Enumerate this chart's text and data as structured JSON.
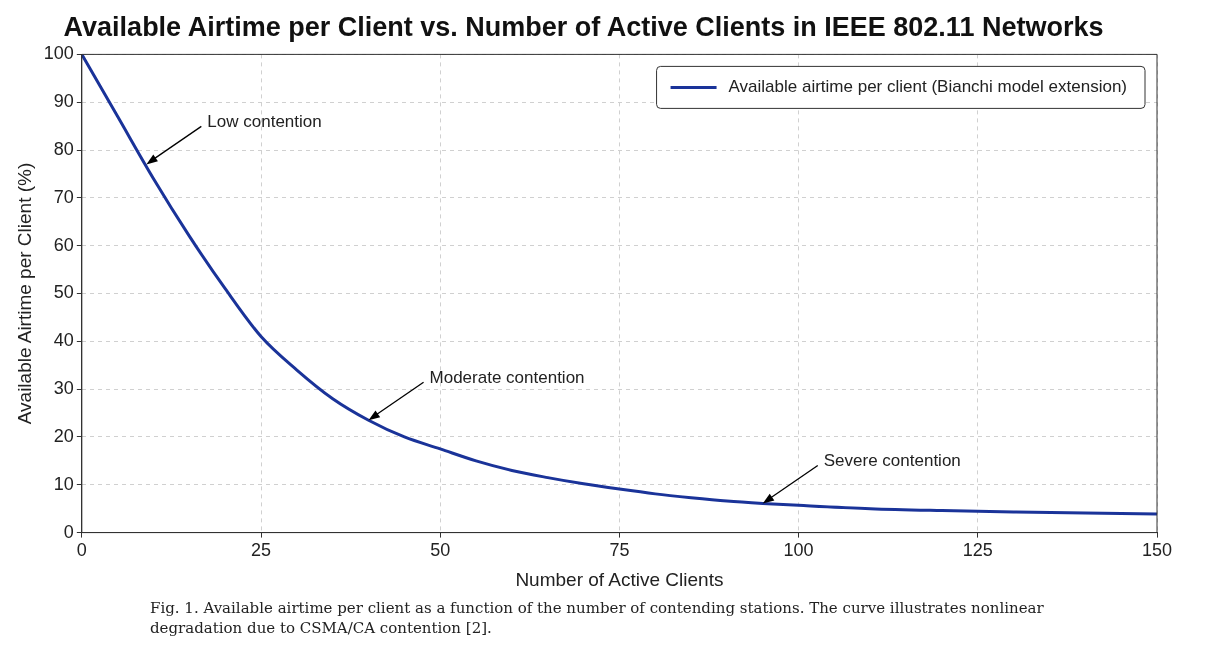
{
  "chart_data": {
    "type": "line",
    "title": "Available Airtime per Client vs. Number of Active Clients in IEEE 802.11 Networks",
    "xlabel": "Number of Active Clients",
    "ylabel": "Available Airtime per Client (%)",
    "xlim": [
      0,
      150
    ],
    "xticks": [
      0,
      25,
      50,
      75,
      100,
      125,
      150
    ],
    "ylim": [
      0,
      100
    ],
    "yticks": [
      0,
      10,
      20,
      30,
      40,
      50,
      60,
      70,
      80,
      90,
      100
    ],
    "grid": true,
    "legend": "top right",
    "marker": "none",
    "line_style": "solid",
    "series": [
      {
        "name": "Available airtime per client (Bianchi model extension)",
        "color": "#1a3399",
        "x": [
          0,
          5,
          10,
          15,
          20,
          25,
          30,
          35,
          40,
          45,
          50,
          55,
          60,
          65,
          70,
          75,
          80,
          85,
          90,
          95,
          100,
          110,
          120,
          130,
          140,
          150
        ],
        "values": [
          100,
          87,
          74,
          62,
          51,
          41,
          34,
          28,
          23.5,
          20,
          17.5,
          15,
          13,
          11.5,
          10.2,
          9.1,
          8.1,
          7.3,
          6.6,
          6.1,
          5.7,
          5.0,
          4.6,
          4.3,
          4.1,
          3.9
        ]
      }
    ],
    "annotations": [
      {
        "text": "Low contention",
        "x": 9,
        "y": 77
      },
      {
        "text": "Moderate contention",
        "x": 40,
        "y": 23.5
      },
      {
        "text": "Severe contention",
        "x": 95,
        "y": 6.1
      },
      "Fig. 1. Available airtime per client as a function of the number of contending stations. The curve illustrates nonlinear degradation due to CSMA/CA contention [2]."
    ]
  }
}
